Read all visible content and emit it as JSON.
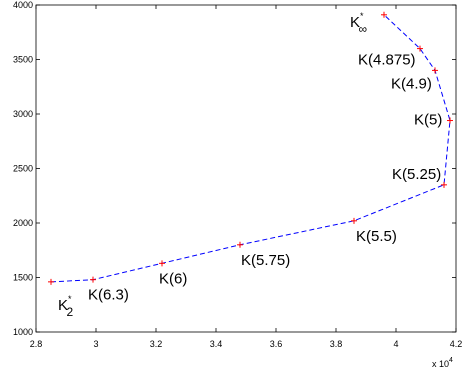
{
  "chart_data": {
    "type": "line",
    "axes": {
      "xlim": [
        28000,
        42000
      ],
      "ylim": [
        1000,
        4000
      ],
      "x_ticks": [
        28000,
        30000,
        32000,
        34000,
        36000,
        38000,
        40000,
        42000
      ],
      "x_tick_labels": [
        "2.8",
        "3",
        "3.2",
        "3.4",
        "3.6",
        "3.8",
        "4",
        "4.2"
      ],
      "y_ticks": [
        1000,
        1500,
        2000,
        2500,
        3000,
        3500,
        4000
      ],
      "y_tick_labels": [
        "1000",
        "1500",
        "2000",
        "2500",
        "3000",
        "3500",
        "4000"
      ],
      "x_exponent_label": "x 10",
      "x_exponent_power": "4",
      "grid": false
    },
    "line_color": "#0000ff",
    "marker_color": "#ff0000",
    "points": [
      {
        "x": 28500,
        "y": 1460
      },
      {
        "x": 29900,
        "y": 1480
      },
      {
        "x": 32200,
        "y": 1630
      },
      {
        "x": 34800,
        "y": 1800
      },
      {
        "x": 38600,
        "y": 2020
      },
      {
        "x": 41600,
        "y": 2350
      },
      {
        "x": 41800,
        "y": 2940
      },
      {
        "x": 41300,
        "y": 3400
      },
      {
        "x": 40800,
        "y": 3600
      },
      {
        "x": 39600,
        "y": 3910
      }
    ],
    "labels": [
      {
        "main": "K",
        "sub": "2",
        "sup": "*",
        "x": 28500,
        "y": 1460
      },
      {
        "main": "K(6.3)",
        "sub": "",
        "sup": "",
        "x": 29900,
        "y": 1480
      },
      {
        "main": "K(6)",
        "sub": "",
        "sup": "",
        "x": 32200,
        "y": 1630
      },
      {
        "main": "K(5.75)",
        "sub": "",
        "sup": "",
        "x": 34800,
        "y": 1800
      },
      {
        "main": "K(5.5)",
        "sub": "",
        "sup": "",
        "x": 38600,
        "y": 2020
      },
      {
        "main": "K(5.25)",
        "sub": "",
        "sup": "",
        "x": 41600,
        "y": 2350
      },
      {
        "main": "K(5)",
        "sub": "",
        "sup": "",
        "x": 41800,
        "y": 2940
      },
      {
        "main": "K(4.9)",
        "sub": "",
        "sup": "",
        "x": 41300,
        "y": 3400
      },
      {
        "main": "K(4.875)",
        "sub": "",
        "sup": "",
        "x": 40800,
        "y": 3600
      },
      {
        "main": "K",
        "sub": "∞",
        "sup": "*",
        "x": 39600,
        "y": 3910
      }
    ]
  }
}
